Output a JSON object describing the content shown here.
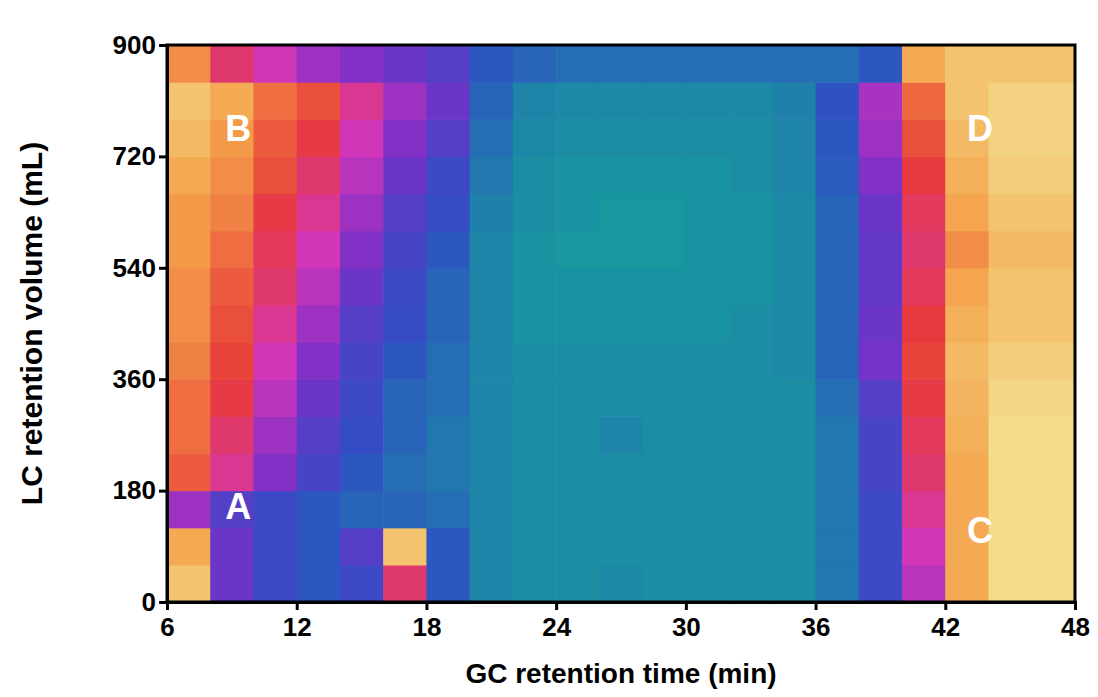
{
  "chart_data": {
    "type": "heatmap",
    "x_label": "GC retention time (min)",
    "y_label": "LC retention volume (mL)",
    "xlim": [
      6,
      48
    ],
    "xticks": [
      6,
      12,
      18,
      24,
      30,
      36,
      42,
      48
    ],
    "ylim": [
      0,
      900
    ],
    "yticks": [
      0,
      180,
      360,
      540,
      720,
      900
    ],
    "zlim": [
      0,
      1
    ],
    "x": [
      7,
      9,
      11,
      13,
      15,
      17,
      19,
      21,
      23,
      25,
      27,
      29,
      31,
      33,
      35,
      37,
      39,
      41,
      43,
      45,
      47
    ],
    "y": [
      30,
      90,
      150,
      210,
      270,
      330,
      390,
      450,
      510,
      570,
      630,
      690,
      750,
      810,
      870
    ],
    "z": [
      [
        0.9,
        0.3,
        0.2,
        0.15,
        0.2,
        0.6,
        0.15,
        0.05,
        0.03,
        0.03,
        0.04,
        0.03,
        0.03,
        0.03,
        0.03,
        0.08,
        0.2,
        0.45,
        0.85,
        0.95,
        0.95
      ],
      [
        0.85,
        0.3,
        0.2,
        0.15,
        0.25,
        0.9,
        0.15,
        0.05,
        0.03,
        0.03,
        0.03,
        0.03,
        0.03,
        0.03,
        0.03,
        0.08,
        0.2,
        0.5,
        0.85,
        0.95,
        0.95
      ],
      [
        0.4,
        0.25,
        0.2,
        0.15,
        0.12,
        0.12,
        0.1,
        0.05,
        0.03,
        0.03,
        0.03,
        0.03,
        0.03,
        0.03,
        0.03,
        0.08,
        0.2,
        0.55,
        0.85,
        0.95,
        0.95
      ],
      [
        0.72,
        0.55,
        0.35,
        0.22,
        0.15,
        0.1,
        0.08,
        0.05,
        0.03,
        0.03,
        0.03,
        0.03,
        0.03,
        0.03,
        0.03,
        0.08,
        0.22,
        0.6,
        0.85,
        0.95,
        0.95
      ],
      [
        0.75,
        0.6,
        0.4,
        0.25,
        0.18,
        0.12,
        0.08,
        0.05,
        0.03,
        0.03,
        0.05,
        0.03,
        0.03,
        0.03,
        0.03,
        0.08,
        0.22,
        0.62,
        0.86,
        0.95,
        0.95
      ],
      [
        0.75,
        0.65,
        0.45,
        0.3,
        0.2,
        0.12,
        0.1,
        0.05,
        0.03,
        0.03,
        0.03,
        0.03,
        0.03,
        0.03,
        0.03,
        0.1,
        0.25,
        0.65,
        0.87,
        0.94,
        0.94
      ],
      [
        0.78,
        0.68,
        0.5,
        0.35,
        0.22,
        0.15,
        0.1,
        0.05,
        0.03,
        0.03,
        0.03,
        0.03,
        0.03,
        0.03,
        0.04,
        0.12,
        0.32,
        0.68,
        0.88,
        0.92,
        0.92
      ],
      [
        0.8,
        0.7,
        0.55,
        0.4,
        0.25,
        0.18,
        0.12,
        0.05,
        0.02,
        0.02,
        0.02,
        0.02,
        0.02,
        0.03,
        0.04,
        0.12,
        0.3,
        0.66,
        0.86,
        0.9,
        0.9
      ],
      [
        0.8,
        0.72,
        0.6,
        0.45,
        0.3,
        0.2,
        0.12,
        0.05,
        0.02,
        0.02,
        0.02,
        0.02,
        0.02,
        0.02,
        0.04,
        0.12,
        0.28,
        0.62,
        0.84,
        0.9,
        0.9
      ],
      [
        0.82,
        0.75,
        0.62,
        0.5,
        0.35,
        0.22,
        0.15,
        0.05,
        0.02,
        0.01,
        0.01,
        0.01,
        0.02,
        0.02,
        0.04,
        0.12,
        0.28,
        0.6,
        0.8,
        0.88,
        0.88
      ],
      [
        0.82,
        0.78,
        0.65,
        0.55,
        0.4,
        0.25,
        0.18,
        0.06,
        0.03,
        0.02,
        0.01,
        0.01,
        0.02,
        0.02,
        0.04,
        0.12,
        0.3,
        0.62,
        0.84,
        0.9,
        0.9
      ],
      [
        0.85,
        0.8,
        0.7,
        0.6,
        0.45,
        0.3,
        0.2,
        0.08,
        0.03,
        0.02,
        0.02,
        0.02,
        0.02,
        0.03,
        0.05,
        0.14,
        0.35,
        0.66,
        0.86,
        0.92,
        0.92
      ],
      [
        0.88,
        0.82,
        0.72,
        0.65,
        0.5,
        0.35,
        0.25,
        0.1,
        0.04,
        0.03,
        0.03,
        0.03,
        0.03,
        0.03,
        0.05,
        0.15,
        0.4,
        0.7,
        0.88,
        0.93,
        0.93
      ],
      [
        0.9,
        0.85,
        0.75,
        0.7,
        0.55,
        0.4,
        0.3,
        0.12,
        0.05,
        0.04,
        0.04,
        0.04,
        0.04,
        0.04,
        0.06,
        0.16,
        0.42,
        0.74,
        0.9,
        0.93,
        0.93
      ],
      [
        0.8,
        0.6,
        0.5,
        0.4,
        0.35,
        0.3,
        0.25,
        0.15,
        0.12,
        0.1,
        0.1,
        0.1,
        0.1,
        0.1,
        0.1,
        0.1,
        0.15,
        0.85,
        0.9,
        0.9,
        0.9
      ]
    ],
    "annotations": [
      {
        "text": "A",
        "x": 9.3,
        "y": 150
      },
      {
        "text": "B",
        "x": 9.3,
        "y": 760
      },
      {
        "text": "C",
        "x": 43.6,
        "y": 110
      },
      {
        "text": "D",
        "x": 43.6,
        "y": 760
      }
    ]
  }
}
